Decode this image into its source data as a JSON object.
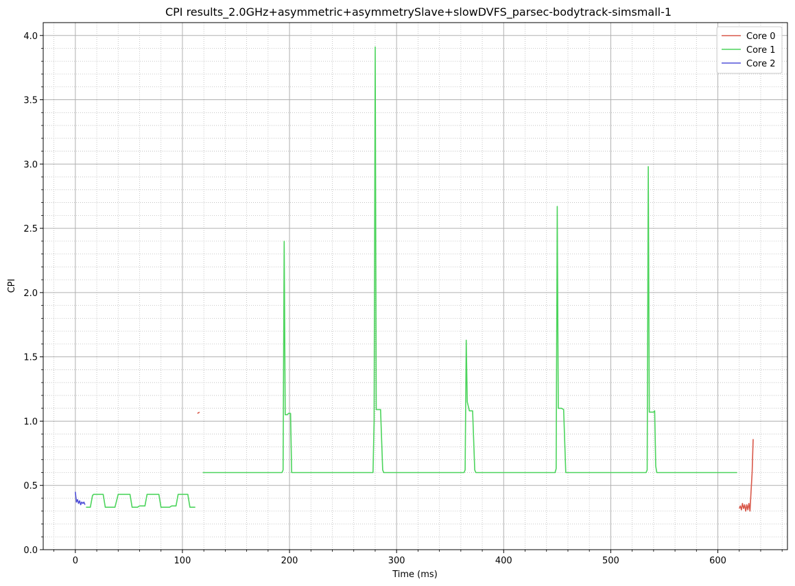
{
  "chart_data": {
    "type": "line",
    "title": "CPI results_2.0GHz+asymmetric+asymmetrySlave+slowDVFS_parsec-bodytrack-simsmall-1",
    "xlabel": "Time (ms)",
    "ylabel": "CPI",
    "xlim": [
      -30,
      665
    ],
    "ylim": [
      0.0,
      4.1
    ],
    "x_ticks": [
      0,
      100,
      200,
      300,
      400,
      500,
      600
    ],
    "x_tick_labels": [
      "0",
      "100",
      "200",
      "300",
      "400",
      "500",
      "600"
    ],
    "y_ticks": [
      0.0,
      0.5,
      1.0,
      1.5,
      2.0,
      2.5,
      3.0,
      3.5,
      4.0
    ],
    "y_tick_labels": [
      "0.0",
      "0.5",
      "1.0",
      "1.5",
      "2.0",
      "2.5",
      "3.0",
      "3.5",
      "4.0"
    ],
    "grid": true,
    "legend_position": "top-right",
    "series": [
      {
        "name": "Core 0",
        "color": "#d9584a",
        "segments": [
          [
            [
              114,
              1.06
            ],
            [
              116,
              1.07
            ]
          ],
          [
            [
              620,
              0.32
            ],
            [
              621,
              0.34
            ],
            [
              622,
              0.31
            ],
            [
              623,
              0.36
            ],
            [
              624,
              0.32
            ],
            [
              625,
              0.35
            ],
            [
              626,
              0.3
            ],
            [
              627,
              0.35
            ],
            [
              628,
              0.31
            ],
            [
              629,
              0.36
            ],
            [
              630,
              0.3
            ],
            [
              631,
              0.45
            ],
            [
              632,
              0.6
            ],
            [
              633,
              0.86
            ]
          ]
        ]
      },
      {
        "name": "Core 1",
        "color": "#4cd45c",
        "segments": [
          [
            [
              10,
              0.33
            ],
            [
              14,
              0.33
            ],
            [
              16,
              0.42
            ],
            [
              17,
              0.43
            ],
            [
              26,
              0.43
            ],
            [
              28,
              0.33
            ],
            [
              37,
              0.33
            ],
            [
              40,
              0.43
            ],
            [
              51,
              0.43
            ],
            [
              53,
              0.33
            ],
            [
              58,
              0.33
            ],
            [
              60,
              0.34
            ],
            [
              65,
              0.34
            ],
            [
              67,
              0.43
            ],
            [
              78,
              0.43
            ],
            [
              80,
              0.33
            ],
            [
              88,
              0.33
            ],
            [
              90,
              0.34
            ],
            [
              94,
              0.34
            ],
            [
              96,
              0.43
            ],
            [
              105,
              0.43
            ],
            [
              107,
              0.33
            ],
            [
              112,
              0.33
            ]
          ],
          [
            [
              119,
              0.6
            ],
            [
              140,
              0.6
            ],
            [
              160,
              0.6
            ],
            [
              180,
              0.6
            ],
            [
              193,
              0.6
            ],
            [
              194,
              0.62
            ],
            [
              195,
              2.4
            ],
            [
              196,
              1.05
            ],
            [
              198,
              1.05
            ],
            [
              199,
              1.06
            ],
            [
              201,
              1.06
            ],
            [
              202,
              0.6
            ],
            [
              225,
              0.6
            ],
            [
              250,
              0.6
            ],
            [
              278,
              0.6
            ],
            [
              279,
              1.0
            ],
            [
              280,
              3.91
            ],
            [
              281,
              1.09
            ],
            [
              285,
              1.09
            ],
            [
              287,
              0.62
            ],
            [
              288,
              0.6
            ],
            [
              310,
              0.6
            ],
            [
              335,
              0.6
            ],
            [
              363,
              0.6
            ],
            [
              364,
              0.62
            ],
            [
              365,
              1.63
            ],
            [
              366,
              1.15
            ],
            [
              368,
              1.08
            ],
            [
              371,
              1.08
            ],
            [
              373,
              0.62
            ],
            [
              374,
              0.6
            ],
            [
              400,
              0.6
            ],
            [
              425,
              0.6
            ],
            [
              448,
              0.6
            ],
            [
              449,
              0.63
            ],
            [
              450,
              2.67
            ],
            [
              451,
              1.1
            ],
            [
              454,
              1.1
            ],
            [
              456,
              1.09
            ],
            [
              458,
              0.6
            ],
            [
              480,
              0.6
            ],
            [
              510,
              0.6
            ],
            [
              533,
              0.6
            ],
            [
              534,
              0.62
            ],
            [
              535,
              2.98
            ],
            [
              536,
              1.07
            ],
            [
              540,
              1.07
            ],
            [
              541,
              1.08
            ],
            [
              542,
              0.65
            ],
            [
              543,
              0.6
            ],
            [
              570,
              0.6
            ],
            [
              600,
              0.6
            ],
            [
              618,
              0.6
            ]
          ]
        ]
      },
      {
        "name": "Core 2",
        "color": "#5050d8",
        "segments": [
          [
            [
              0,
              0.45
            ],
            [
              1,
              0.37
            ],
            [
              2,
              0.39
            ],
            [
              3,
              0.36
            ],
            [
              4,
              0.38
            ],
            [
              5,
              0.35
            ],
            [
              6,
              0.37
            ],
            [
              7,
              0.36
            ],
            [
              8,
              0.37
            ],
            [
              9,
              0.35
            ]
          ]
        ]
      }
    ]
  }
}
